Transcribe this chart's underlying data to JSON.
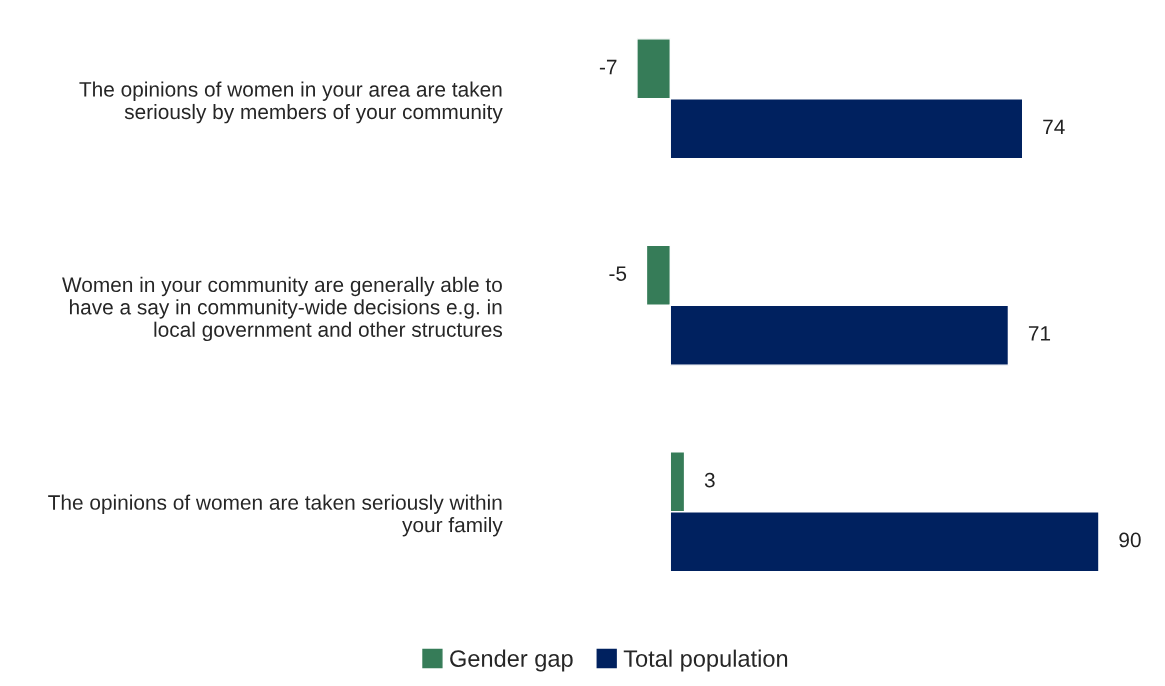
{
  "chart_data": {
    "type": "bar",
    "orientation": "horizontal",
    "categories": [
      "The opinions of women in your area are taken\nseriously by members of your community",
      "Women in your community are generally able to\nhave a say in community-wide decisions e.g. in\nlocal government and other structures",
      "The opinions of women are taken seriously within\nyour family"
    ],
    "series": [
      {
        "name": "Gender gap",
        "color": "#367c58",
        "values": [
          -7,
          -5,
          3
        ]
      },
      {
        "name": "Total population",
        "color": "#00215f",
        "values": [
          74,
          71,
          90
        ]
      }
    ],
    "data_labels": true,
    "legend": "bottom",
    "grid": false
  }
}
